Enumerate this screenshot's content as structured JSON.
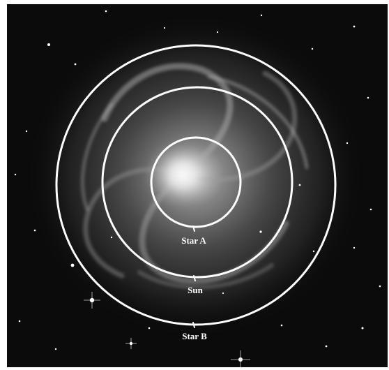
{
  "image": {
    "subject": "face-on spiral galaxy with concentric orbit rings",
    "background_color": "#0b0b0b",
    "ring_color": "#ffffff"
  },
  "labels": {
    "star_a": "Star A",
    "sun": "Sun",
    "star_b": "Star B"
  }
}
